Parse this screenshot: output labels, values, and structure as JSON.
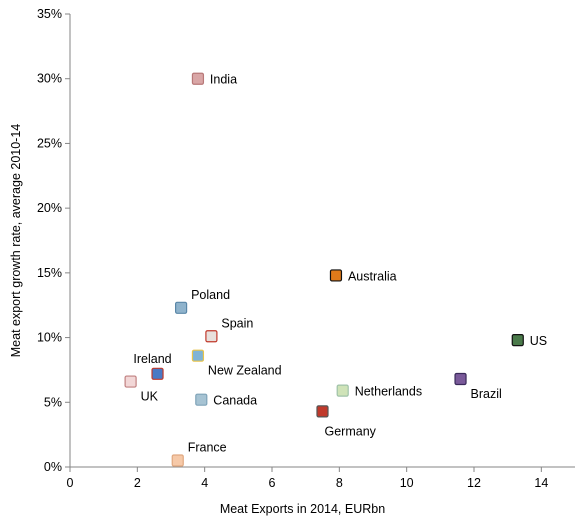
{
  "chart_data": {
    "type": "scatter",
    "title": "",
    "xlabel": "Meat Exports in 2014, EURbn",
    "ylabel": "Meat export growth rate, average 2010-14",
    "xlim": [
      0,
      15
    ],
    "ylim": [
      0,
      35
    ],
    "x_ticks": [
      0,
      2,
      4,
      6,
      8,
      10,
      12,
      14
    ],
    "y_ticks": [
      0,
      5,
      10,
      15,
      20,
      25,
      30,
      35
    ],
    "x_tick_labels": [
      "0",
      "2",
      "4",
      "6",
      "8",
      "10",
      "12",
      "14"
    ],
    "y_tick_labels": [
      "0%",
      "5%",
      "10%",
      "15%",
      "20%",
      "25%",
      "30%",
      "35%"
    ],
    "grid": false,
    "legend": "none",
    "points": [
      {
        "label": "India",
        "x": 3.8,
        "y": 30.0,
        "label_pos": "right",
        "color": "#d9a6a6",
        "edge": "#b87878",
        "icon": "india-flag-marker"
      },
      {
        "label": "Australia",
        "x": 7.9,
        "y": 14.8,
        "label_pos": "right",
        "color": "#e07a1a",
        "edge": "#111111",
        "icon": "australia-flag-marker"
      },
      {
        "label": "Poland",
        "x": 3.3,
        "y": 12.3,
        "label_pos": "upper-right",
        "color": "#8fb3cc",
        "edge": "#5a87a8",
        "icon": "poland-flag-marker"
      },
      {
        "label": "Spain",
        "x": 4.2,
        "y": 10.1,
        "label_pos": "upper-right",
        "color": "#e8e0dc",
        "edge": "#c0392b",
        "icon": "spain-flag-marker"
      },
      {
        "label": "New Zealand",
        "x": 3.8,
        "y": 8.6,
        "label_pos": "lower-right",
        "color": "#7fb3d5",
        "edge": "#e8c44a",
        "icon": "new-zealand-flag-marker"
      },
      {
        "label": "Ireland",
        "x": 2.6,
        "y": 7.2,
        "label_pos": "above",
        "color": "#4a79c4",
        "edge": "#c0392b",
        "icon": "ireland-flag-marker"
      },
      {
        "label": "UK",
        "x": 1.8,
        "y": 6.6,
        "label_pos": "lower-right",
        "color": "#f2d7d7",
        "edge": "#c08080",
        "icon": "uk-flag-marker"
      },
      {
        "label": "Canada",
        "x": 3.9,
        "y": 5.2,
        "label_pos": "right",
        "color": "#a6c3d3",
        "edge": "#7fa3b8",
        "icon": "canada-flag-marker"
      },
      {
        "label": "France",
        "x": 3.2,
        "y": 0.5,
        "label_pos": "upper-right",
        "color": "#f6c9a8",
        "edge": "#e0a880",
        "icon": "france-flag-marker"
      },
      {
        "label": "Germany",
        "x": 7.5,
        "y": 4.3,
        "label_pos": "below",
        "color": "#c0392b",
        "edge": "#555555",
        "icon": "germany-flag-marker"
      },
      {
        "label": "Netherlands",
        "x": 8.1,
        "y": 5.9,
        "label_pos": "right",
        "color": "#cfe3b8",
        "edge": "#9fc2a8",
        "icon": "netherlands-flag-marker"
      },
      {
        "label": "Brazil",
        "x": 11.6,
        "y": 6.8,
        "label_pos": "lower-right",
        "color": "#7a5a9a",
        "edge": "#3a2a5a",
        "icon": "brazil-flag-marker"
      },
      {
        "label": "US",
        "x": 13.3,
        "y": 9.8,
        "label_pos": "right",
        "color": "#4a7a4a",
        "edge": "#111111",
        "icon": "us-flag-marker"
      }
    ]
  }
}
